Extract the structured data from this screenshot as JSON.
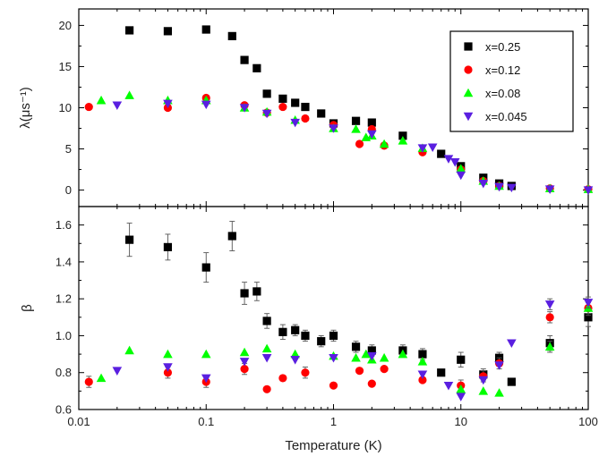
{
  "chart_data": [
    {
      "type": "scatter",
      "panel": "top",
      "xlabel": "Temperature (K)",
      "ylabel": "λ(μs⁻¹)",
      "xscale": "log",
      "xlim": [
        0.01,
        100
      ],
      "ylim": [
        -2,
        22
      ],
      "yticks": [
        0,
        5,
        10,
        15,
        20
      ],
      "legend_position": "top-right",
      "series": [
        {
          "name": "x=0.25",
          "color": "#000000",
          "marker": "square",
          "x": [
            0.025,
            0.05,
            0.1,
            0.16,
            0.2,
            0.25,
            0.3,
            0.4,
            0.5,
            0.6,
            0.8,
            1.0,
            1.5,
            2.0,
            3.5,
            7,
            10,
            15,
            20,
            25
          ],
          "y": [
            19.4,
            19.3,
            19.5,
            18.7,
            15.8,
            14.8,
            11.7,
            11.1,
            10.6,
            10.1,
            9.3,
            8.1,
            8.4,
            8.2,
            6.6,
            4.4,
            2.9,
            1.5,
            0.8,
            0.5
          ]
        },
        {
          "name": "x=0.12",
          "color": "#ff0000",
          "marker": "circle",
          "x": [
            0.012,
            0.05,
            0.1,
            0.2,
            0.3,
            0.4,
            0.6,
            1.0,
            1.6,
            2.0,
            2.5,
            5,
            10,
            15,
            20,
            50,
            100
          ],
          "y": [
            10.1,
            10.0,
            11.2,
            10.3,
            9.4,
            10.1,
            8.7,
            7.9,
            5.6,
            7.4,
            5.4,
            4.6,
            2.5,
            1.1,
            0.5,
            0.2,
            0.1
          ]
        },
        {
          "name": "x=0.08",
          "color": "#00ff00",
          "marker": "triangle-up",
          "x": [
            0.015,
            0.025,
            0.05,
            0.1,
            0.2,
            0.3,
            0.5,
            1.0,
            1.5,
            1.8,
            2.0,
            2.5,
            3.5,
            5,
            10,
            15,
            20,
            50,
            100
          ],
          "y": [
            10.9,
            11.5,
            10.9,
            10.9,
            10.0,
            9.5,
            8.5,
            7.5,
            7.4,
            6.4,
            6.6,
            5.6,
            6.0,
            5.1,
            2.6,
            1.1,
            0.5,
            0.2,
            0.1
          ]
        },
        {
          "name": "x=0.045",
          "color": "#5a1fe0",
          "marker": "triangle-down",
          "x": [
            0.02,
            0.05,
            0.1,
            0.2,
            0.3,
            0.5,
            1.0,
            2.0,
            5,
            6,
            8,
            9,
            10,
            15,
            20,
            25,
            50,
            100
          ],
          "y": [
            10.3,
            10.5,
            10.4,
            10.0,
            9.3,
            8.2,
            7.5,
            6.8,
            5.1,
            5.2,
            3.8,
            3.4,
            1.8,
            0.8,
            0.4,
            0.3,
            0.1,
            0.0
          ]
        }
      ]
    },
    {
      "type": "scatter",
      "panel": "bottom",
      "xlabel": "Temperature (K)",
      "ylabel": "β",
      "xscale": "log",
      "xlim": [
        0.01,
        100
      ],
      "xticks": [
        0.01,
        0.1,
        1,
        10,
        100
      ],
      "xticklabels": [
        "0.01",
        "0.1",
        "1",
        "10",
        "100"
      ],
      "ylim": [
        0.6,
        1.7
      ],
      "yticks": [
        0.6,
        0.8,
        1.0,
        1.2,
        1.4,
        1.6
      ],
      "series": [
        {
          "name": "x=0.25",
          "color": "#000000",
          "marker": "square",
          "x": [
            0.025,
            0.05,
            0.1,
            0.16,
            0.2,
            0.25,
            0.3,
            0.4,
            0.5,
            0.6,
            0.8,
            1.0,
            1.5,
            2.0,
            3.5,
            5,
            7,
            10,
            15,
            20,
            25,
            50,
            100
          ],
          "y": [
            1.52,
            1.48,
            1.37,
            1.54,
            1.23,
            1.24,
            1.08,
            1.02,
            1.03,
            1.0,
            0.97,
            1.0,
            0.94,
            0.92,
            0.92,
            0.9,
            0.8,
            0.87,
            0.79,
            0.88,
            0.75,
            0.96,
            1.1
          ],
          "err": [
            0.09,
            0.07,
            0.08,
            0.08,
            0.06,
            0.05,
            0.04,
            0.04,
            0.03,
            0.03,
            0.03,
            0.03,
            0.03,
            0.03,
            0.03,
            0.03,
            0.02,
            0.04,
            0.03,
            0.03,
            0.02,
            0.04,
            0.05
          ]
        },
        {
          "name": "x=0.12",
          "color": "#ff0000",
          "marker": "circle",
          "x": [
            0.012,
            0.05,
            0.1,
            0.2,
            0.3,
            0.4,
            0.6,
            1.0,
            1.6,
            2.0,
            2.5,
            5,
            10,
            15,
            20,
            50,
            100
          ],
          "y": [
            0.75,
            0.8,
            0.75,
            0.82,
            0.71,
            0.77,
            0.8,
            0.73,
            0.81,
            0.74,
            0.82,
            0.76,
            0.73,
            0.78,
            0.85,
            1.1,
            1.15
          ],
          "err": [
            0.03,
            0.03,
            0.03,
            0.03,
            0.02,
            0.02,
            0.03,
            0.02,
            0.02,
            0.02,
            0.02,
            0.02,
            0.03,
            0.03,
            0.03,
            0.03,
            0.04
          ]
        },
        {
          "name": "x=0.08",
          "color": "#00ff00",
          "marker": "triangle-up",
          "x": [
            0.015,
            0.025,
            0.05,
            0.1,
            0.2,
            0.3,
            0.5,
            1.0,
            1.5,
            1.8,
            2.0,
            2.5,
            3.5,
            5,
            10,
            15,
            20,
            50,
            100
          ],
          "y": [
            0.77,
            0.92,
            0.9,
            0.9,
            0.91,
            0.93,
            0.9,
            0.89,
            0.88,
            0.9,
            0.87,
            0.88,
            0.9,
            0.86,
            0.71,
            0.7,
            0.69,
            0.94,
            1.15
          ],
          "err": [
            0.02,
            0.02,
            0.02,
            0.02,
            0.02,
            0.02,
            0.02,
            0.02,
            0.02,
            0.02,
            0.02,
            0.02,
            0.02,
            0.02,
            0.02,
            0.02,
            0.02,
            0.03,
            0.03
          ]
        },
        {
          "name": "x=0.045",
          "color": "#5a1fe0",
          "marker": "triangle-down",
          "x": [
            0.02,
            0.05,
            0.1,
            0.2,
            0.3,
            0.5,
            1.0,
            2.0,
            5,
            8,
            10,
            15,
            20,
            25,
            50,
            100
          ],
          "y": [
            0.81,
            0.83,
            0.77,
            0.86,
            0.88,
            0.87,
            0.88,
            0.89,
            0.79,
            0.73,
            0.67,
            0.76,
            0.84,
            0.96,
            1.17,
            1.18
          ],
          "err": [
            0.02,
            0.02,
            0.02,
            0.02,
            0.02,
            0.02,
            0.02,
            0.02,
            0.02,
            0.02,
            0.02,
            0.02,
            0.02,
            0.02,
            0.03,
            0.03
          ]
        }
      ]
    }
  ]
}
